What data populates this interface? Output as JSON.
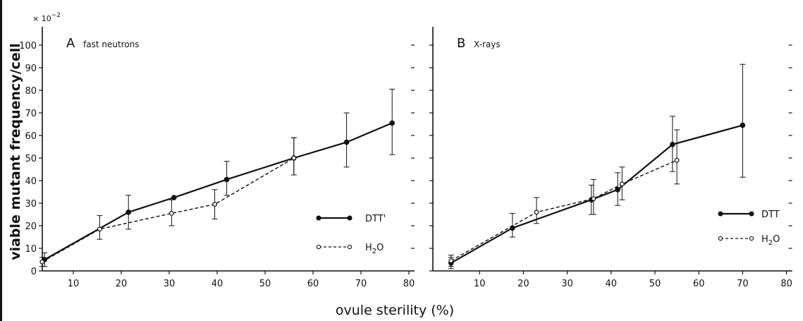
{
  "figure": {
    "ylabel": "viable mutant frequency/cell",
    "xlabel": "ovule sterility (%)",
    "y_multiplier": "× 10",
    "y_multiplier_exp": "−2"
  },
  "chart_data": [
    {
      "type": "line",
      "panel": "A",
      "title": "fast neutrons",
      "xlim": [
        0,
        80
      ],
      "ylim": [
        0,
        100
      ],
      "xticks": [
        10,
        20,
        30,
        40,
        50,
        60,
        70,
        80
      ],
      "yticks": [
        0,
        10,
        20,
        30,
        40,
        50,
        60,
        70,
        80,
        90,
        100
      ],
      "grid": false,
      "legend_position": "bottom-right",
      "series": [
        {
          "name": "DTT'",
          "marker": "filled-circle",
          "style": "solid",
          "x": [
            4,
            21.5,
            31,
            42,
            56,
            67,
            76.5
          ],
          "y": [
            5,
            26,
            32.5,
            40.5,
            50,
            57,
            65.5
          ],
          "err_low": [
            3,
            7.5,
            0,
            7,
            7.5,
            11,
            14
          ],
          "err_high": [
            3,
            7.5,
            0,
            8,
            9,
            13,
            15
          ]
        },
        {
          "name": "H2O",
          "marker": "open-circle",
          "style": "dashed",
          "x": [
            3.5,
            15.5,
            30.5,
            39.5,
            56
          ],
          "y": [
            4,
            18.5,
            25.5,
            29.5,
            50
          ],
          "err_low": [
            2,
            4.5,
            5.5,
            6.5,
            7.5
          ],
          "err_high": [
            2,
            6,
            6,
            6.5,
            9
          ]
        }
      ]
    },
    {
      "type": "line",
      "panel": "B",
      "title": "X-rays",
      "xlim": [
        0,
        80
      ],
      "ylim": [
        0,
        100
      ],
      "xticks": [
        10,
        20,
        30,
        40,
        50,
        60,
        70,
        80
      ],
      "yticks": [
        0,
        10,
        20,
        30,
        40,
        50,
        60,
        70,
        80,
        90,
        100
      ],
      "grid": false,
      "legend_position": "bottom-right",
      "series": [
        {
          "name": "DTT",
          "marker": "filled-circle",
          "style": "solid",
          "x": [
            3.5,
            17.5,
            35.5,
            41.5,
            54,
            70
          ],
          "y": [
            3.5,
            19,
            31.5,
            36,
            56,
            64.5
          ],
          "err_low": [
            2.5,
            4,
            6.5,
            7,
            12,
            23
          ],
          "err_high": [
            2.5,
            6.5,
            6.5,
            7.5,
            12.5,
            27
          ]
        },
        {
          "name": "H2O",
          "marker": "open-circle",
          "style": "dashed",
          "x": [
            3.5,
            23,
            36,
            42.5,
            55
          ],
          "y": [
            4.5,
            26,
            32,
            38.5,
            49
          ],
          "err_low": [
            2.5,
            5,
            7,
            7,
            10.5
          ],
          "err_high": [
            2.5,
            6.5,
            8.5,
            7.5,
            13.5
          ]
        }
      ]
    }
  ]
}
